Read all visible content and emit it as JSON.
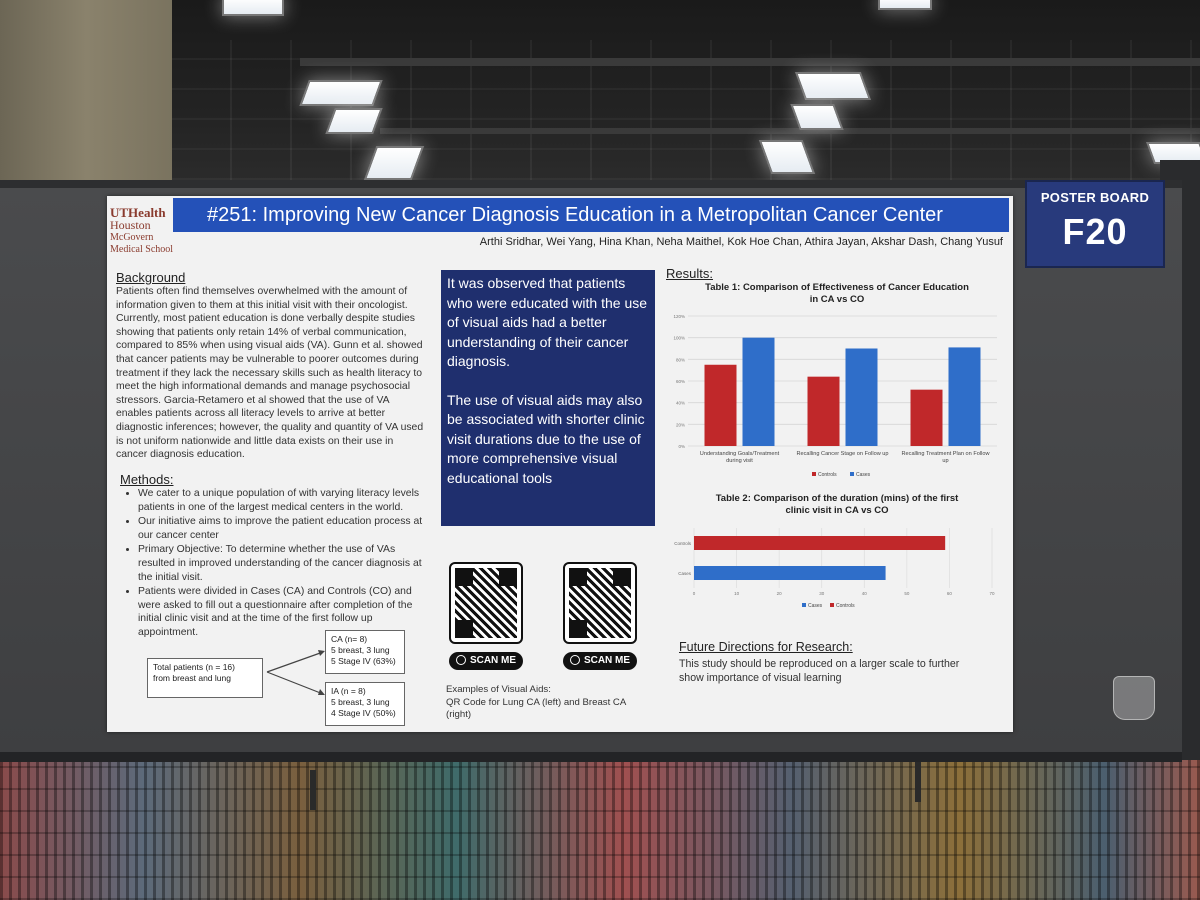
{
  "board": {
    "label_line1": "POSTER BOARD",
    "label_line2": "F20"
  },
  "poster": {
    "logo": {
      "line1": "UTHealth",
      "line2": "Houston",
      "line3": "McGovern",
      "line4": "Medical School"
    },
    "title": "#251: Improving New Cancer Diagnosis Education in a Metropolitan Cancer Center",
    "authors": "Arthi Sridhar, Wei Yang, Hina Khan, Neha Maithel, Kok Hoe Chan, Athira Jayan, Akshar Dash, Chang Yusuf",
    "background": {
      "heading": "Background",
      "text": "Patients often find themselves overwhelmed with the amount of information given to them at this initial visit with their oncologist. Currently, most patient education is done verbally despite studies showing that patients only retain 14% of verbal communication, compared to 85% when using visual aids (VA). Gunn et al. showed that cancer patients may be vulnerable to poorer outcomes during treatment if they lack the necessary skills such as health literacy to meet the high informational demands and manage psychosocial stressors. Garcia-Retamero et al showed that the use of VA enables patients across all literacy levels to arrive at better diagnostic inferences; however, the quality and quantity of VA used is not uniform nationwide and little data exists on their use in cancer diagnosis education."
    },
    "methods": {
      "heading": "Methods:",
      "items": [
        "We cater to a unique population of with varying literacy levels patients in one of the largest medical centers in the world.",
        "Our initiative aims to improve the patient education process at our cancer center",
        "Primary Objective: To determine whether the use of VAs resulted in improved understanding of the cancer diagnosis at the initial visit.",
        "Patients were divided in Cases (CA) and Controls (CO) and were asked to fill out a questionnaire after completion of the initial clinic visit and at the time of the first follow up appointment."
      ]
    },
    "flow": {
      "total_line1": "Total patients (n = 16)",
      "total_line2": "from breast and lung",
      "ca_line1": "CA (n= 8)",
      "ca_line2": "5 breast, 3 lung",
      "ca_line3": "5 Stage IV (63%)",
      "ia_line1": "IA (n = 8)",
      "ia_line2": "5 breast, 3 lung",
      "ia_line3": "4 Stage IV (50%)"
    },
    "conclusion": {
      "para1": "It was observed that patients who were educated with the use of visual aids had a better understanding of their cancer diagnosis.",
      "para2": "The use of visual aids may also be associated with shorter clinic visit durations due to the use of more comprehensive visual educational tools"
    },
    "qr": {
      "button_label": "SCAN ME",
      "examples_line1": "Examples of Visual Aids:",
      "examples_line2": "QR Code for Lung CA (left) and Breast CA",
      "examples_line3": "(right)"
    },
    "results": {
      "heading": "Results:",
      "table1_title_line1": "Table 1: Comparison of Effectiveness of Cancer Education",
      "table1_title_line2": "in CA vs CO",
      "table2_title_line1": "Table 2: Comparison of the duration (mins) of the first",
      "table2_title_line2": "clinic visit in CA vs CO"
    },
    "future": {
      "heading": "Future Directions for Research:",
      "text_line1": "This study should be reproduced on a larger scale to further",
      "text_line2": "show importance of visual learning"
    }
  },
  "colors": {
    "controls": "#c0282a",
    "cases": "#2f6ec9",
    "title_bar": "#2451b8",
    "center_box": "#1f2f6e"
  },
  "chart_data": [
    {
      "type": "bar",
      "title": "Table 1: Comparison of Effectiveness of Cancer Education in CA vs CO",
      "categories": [
        "Understanding Goals/Treatment during visit",
        "Recalling Cancer Stage on Follow up",
        "Recalling Treatment Plan on Follow up"
      ],
      "category_lines": [
        [
          "Understanding Goals/Treatment",
          "during visit"
        ],
        [
          "Recalling Cancer Stage on Follow up"
        ],
        [
          "Recalling Treatment Plan on Follow",
          "up"
        ]
      ],
      "series": [
        {
          "name": "Controls",
          "values": [
            75,
            64,
            52
          ]
        },
        {
          "name": "Cases",
          "values": [
            100,
            90,
            91
          ]
        }
      ],
      "yticks": [
        "0%",
        "20%",
        "40%",
        "60%",
        "80%",
        "100%",
        "120%"
      ],
      "ylim": [
        0,
        120
      ],
      "legend": "bottom"
    },
    {
      "type": "bar",
      "orientation": "horizontal",
      "title": "Table 2: Comparison of the duration (mins) of the first clinic visit in CA vs CO",
      "categories": [
        "Controls",
        "Cases"
      ],
      "series": [
        {
          "name": "Controls",
          "values": [
            59,
            null
          ]
        },
        {
          "name": "Cases",
          "values": [
            null,
            45
          ]
        }
      ],
      "xticks": [
        "0",
        "10",
        "20",
        "30",
        "40",
        "50",
        "60",
        "70"
      ],
      "xlim": [
        0,
        70
      ],
      "legend": "bottom"
    }
  ]
}
